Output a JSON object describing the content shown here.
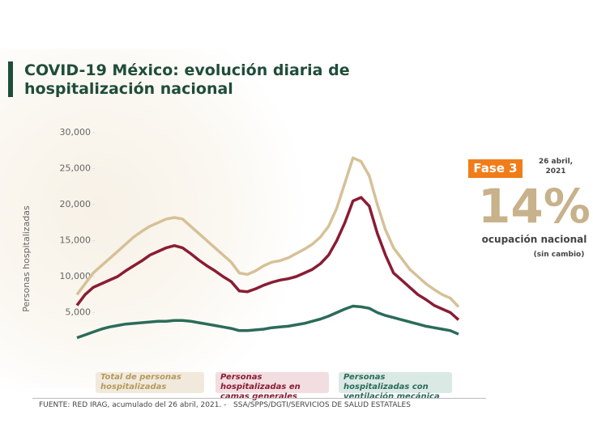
{
  "chart_data": {
    "type": "line",
    "title": "COVID-19 México: evolución diaria de hospitalización nacional",
    "y_label": "Personas hospitalizadas",
    "categories": [
      null,
      null,
      null,
      null,
      null,
      null,
      null,
      null,
      null,
      null,
      null,
      null,
      null,
      null,
      null,
      null,
      null,
      null,
      null,
      null,
      null,
      null,
      null,
      null,
      null,
      null,
      null,
      null,
      null,
      null,
      null,
      null,
      null,
      null,
      null,
      null,
      null,
      null,
      null,
      null,
      null,
      null,
      null,
      null,
      null,
      null,
      null,
      null
    ],
    "ylim": [
      0,
      30000
    ],
    "yticks": [
      {
        "value": 5000,
        "label": "5,000"
      },
      {
        "value": 10000,
        "label": "10,000"
      },
      {
        "value": 15000,
        "label": "15,000"
      },
      {
        "value": 20000,
        "label": "20,000"
      },
      {
        "value": 25000,
        "label": "25,000"
      },
      {
        "value": 30000,
        "label": "30,000"
      }
    ],
    "grid": false,
    "series": [
      {
        "name": "Total de personas hospitalizadas",
        "color": "#d6c197",
        "values": [
          7500,
          9000,
          10500,
          11500,
          12500,
          13500,
          14500,
          15500,
          16300,
          17000,
          17500,
          18000,
          18200,
          18000,
          17000,
          16000,
          15000,
          14000,
          13000,
          12000,
          10500,
          10300,
          10800,
          11500,
          12000,
          12200,
          12600,
          13200,
          13800,
          14500,
          15500,
          17000,
          19500,
          23000,
          26500,
          26000,
          24000,
          20000,
          16500,
          14000,
          12500,
          11000,
          10000,
          9000,
          8200,
          7500,
          7000,
          5800
        ]
      },
      {
        "name": "Personas hospitalizadas en camas generales",
        "color": "#8a1c33",
        "values": [
          6000,
          7500,
          8500,
          9000,
          9500,
          10000,
          10800,
          11500,
          12200,
          13000,
          13500,
          14000,
          14300,
          14000,
          13200,
          12300,
          11500,
          10800,
          10000,
          9300,
          8000,
          7900,
          8300,
          8800,
          9200,
          9500,
          9700,
          10000,
          10500,
          11000,
          11800,
          13000,
          15000,
          17500,
          20500,
          21000,
          19800,
          16000,
          13000,
          10500,
          9500,
          8500,
          7500,
          6800,
          6000,
          5500,
          5000,
          4000
        ]
      },
      {
        "name": "Personas hospitalizadas con ventilación mecánica",
        "color": "#2b6b5a",
        "values": [
          1500,
          1900,
          2300,
          2700,
          3000,
          3200,
          3400,
          3500,
          3600,
          3700,
          3800,
          3800,
          3900,
          3900,
          3800,
          3600,
          3400,
          3200,
          3000,
          2800,
          2500,
          2500,
          2600,
          2700,
          2900,
          3000,
          3100,
          3300,
          3500,
          3800,
          4100,
          4500,
          5000,
          5500,
          5900,
          5800,
          5600,
          5000,
          4600,
          4300,
          4000,
          3700,
          3400,
          3100,
          2900,
          2700,
          2500,
          2000
        ]
      }
    ]
  },
  "panel": {
    "phase": "Fase 3",
    "date": "26 abril, 2021",
    "occupancy": "14%",
    "occupancy_label": "ocupación nacional",
    "note": "(sin cambio)"
  },
  "source": "FUENTE: RED IRAG, acumulado del 26 abril, 2021. -   SSA/SPPS/DGTI/SERVICIOS DE SALUD ESTATALES"
}
